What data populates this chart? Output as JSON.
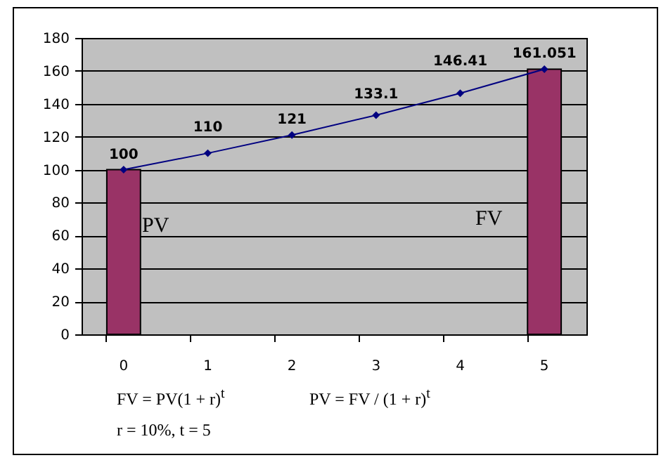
{
  "chart_data": {
    "type": "bar",
    "categories": [
      "0",
      "1",
      "2",
      "3",
      "4",
      "5"
    ],
    "series": [
      {
        "color": "#993366",
        "values": [
          100,
          null,
          null,
          null,
          null,
          161.051
        ]
      },
      {
        "type": "line",
        "color": "#000080",
        "values": [
          100,
          110,
          121,
          133.1,
          146.41,
          161.051
        ],
        "value_labels": [
          "100",
          "110",
          "121",
          "133.1",
          "146.41",
          "161.051"
        ]
      }
    ],
    "ylim": [
      0,
      180
    ],
    "yticks": [
      0,
      20,
      40,
      60,
      80,
      100,
      120,
      140,
      160,
      180
    ],
    "grid": "y",
    "marker": "diamond",
    "annotations": [
      "PV",
      "FV",
      "FV = PV(1 + r)$^{t}$",
      "PV = FV / (1 + r)$^{t}$",
      "r = 10%, t = 5"
    ]
  }
}
